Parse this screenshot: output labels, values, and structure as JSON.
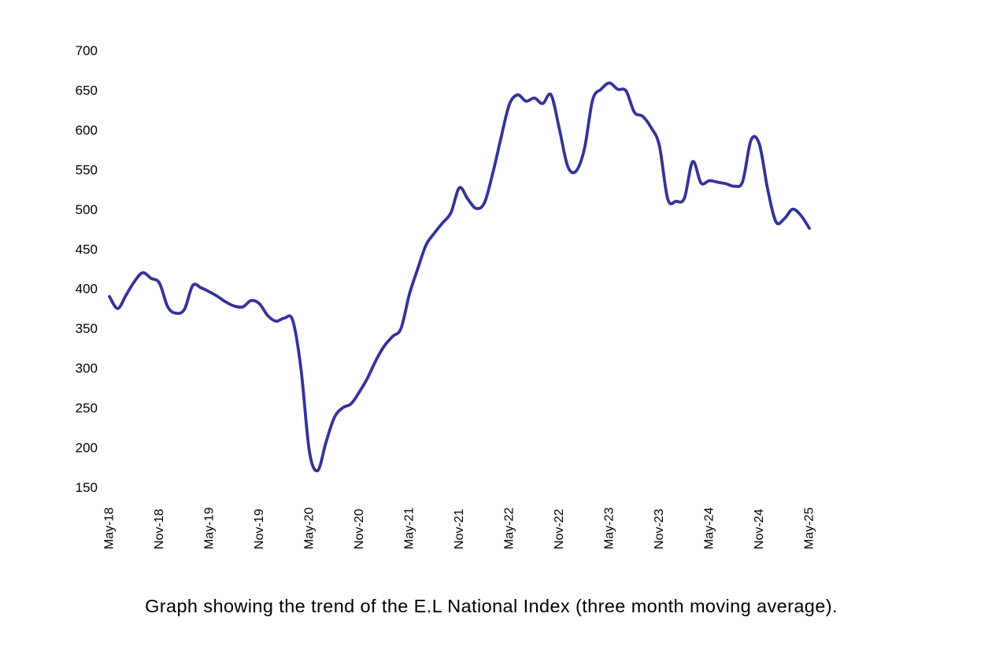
{
  "caption": "Graph showing the trend of the E.L National Index (three month moving average).",
  "chart_data": {
    "type": "line",
    "series_name": "E.L National Index (three month moving average)",
    "line_color": "#333399",
    "background_color": "#ffffff",
    "grid": false,
    "legend": "none",
    "ylim": [
      150,
      700
    ],
    "y_ticks": [
      150,
      200,
      250,
      300,
      350,
      400,
      450,
      500,
      550,
      600,
      650,
      700
    ],
    "x_tick_labels": [
      "May-18",
      "Nov-18",
      "May-19",
      "Nov-19",
      "May-20",
      "Nov-20",
      "May-21",
      "Nov-21",
      "May-22",
      "Nov-22",
      "May-23",
      "Nov-23",
      "May-24",
      "Nov-24",
      "May-25"
    ],
    "x": [
      "May-18",
      "Jun-18",
      "Jul-18",
      "Aug-18",
      "Sep-18",
      "Oct-18",
      "Nov-18",
      "Dec-18",
      "Jan-19",
      "Feb-19",
      "Mar-19",
      "Apr-19",
      "May-19",
      "Jun-19",
      "Jul-19",
      "Aug-19",
      "Sep-19",
      "Oct-19",
      "Nov-19",
      "Dec-19",
      "Jan-20",
      "Feb-20",
      "Mar-20",
      "Apr-20",
      "May-20",
      "Jun-20",
      "Jul-20",
      "Aug-20",
      "Sep-20",
      "Oct-20",
      "Nov-20",
      "Dec-20",
      "Jan-21",
      "Feb-21",
      "Mar-21",
      "Apr-21",
      "May-21",
      "Jun-21",
      "Jul-21",
      "Aug-21",
      "Sep-21",
      "Oct-21",
      "Nov-21",
      "Dec-21",
      "Jan-22",
      "Feb-22",
      "Mar-22",
      "Apr-22",
      "May-22",
      "Jun-22",
      "Jul-22",
      "Aug-22",
      "Sep-22",
      "Oct-22",
      "Nov-22",
      "Dec-22",
      "Jan-23",
      "Feb-23",
      "Mar-23",
      "Apr-23",
      "May-23",
      "Jun-23",
      "Jul-23",
      "Aug-23",
      "Sep-23",
      "Oct-23",
      "Nov-23",
      "Dec-23",
      "Jan-24",
      "Feb-24",
      "Mar-24",
      "Apr-24",
      "May-24",
      "Jun-24",
      "Jul-24",
      "Aug-24",
      "Sep-24",
      "Oct-24",
      "Nov-24",
      "Dec-24",
      "Jan-25",
      "Feb-25",
      "Mar-25",
      "Apr-25",
      "May-25"
    ],
    "values": [
      390,
      375,
      392,
      409,
      420,
      413,
      407,
      377,
      369,
      374,
      404,
      401,
      396,
      390,
      383,
      378,
      377,
      385,
      381,
      366,
      359,
      363,
      360,
      298,
      195,
      171,
      207,
      238,
      250,
      255,
      270,
      288,
      310,
      328,
      340,
      350,
      393,
      425,
      455,
      470,
      483,
      496,
      527,
      513,
      501,
      508,
      545,
      590,
      632,
      644,
      636,
      640,
      633,
      644,
      601,
      554,
      548,
      576,
      638,
      651,
      659,
      651,
      649,
      622,
      617,
      603,
      580,
      513,
      510,
      514,
      560,
      533,
      536,
      534,
      532,
      529,
      535,
      587,
      582,
      525,
      484,
      488,
      500,
      492,
      476
    ]
  },
  "style": {
    "axis_text_color": "#000000",
    "y_tick_font_px": 17,
    "x_tick_font_px": 16,
    "line_width": 3.8
  }
}
